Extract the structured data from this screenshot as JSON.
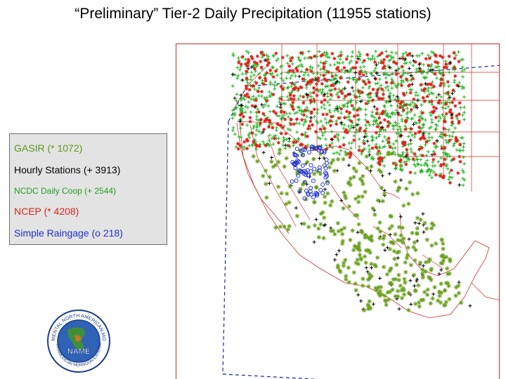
{
  "title": "“Preliminary” Tier-2 Daily Precipitation (11955 stations)",
  "legend": {
    "items": [
      {
        "label": "GASIR (* 1072)",
        "color": "#5a9a1a"
      },
      {
        "label": "Hourly Stations (+ 3913)",
        "color": "#000000"
      },
      {
        "label": "NCDC Daily Coop (+ 2544)",
        "color": "#20a020"
      },
      {
        "label": "NCEP (* 4208)",
        "color": "#d8271a"
      },
      {
        "label": "Simple Raingage (o 218)",
        "color": "#2030d0"
      }
    ]
  },
  "map": {
    "colors": {
      "border": "#c8302a",
      "state_lines": "#c8302a",
      "domain_outline": "#1a2aa0",
      "gasir": "#6aa01e",
      "ncdc": "#22b322",
      "ncep": "#e0201a",
      "hourly": "#000000",
      "raingage": "#2030d0"
    }
  },
  "logo": {
    "text": "NAME",
    "ring_text": "EXPERIMENTAL NORTH AMERICAN MONSOON",
    "ring_text_bottom": "NORTH AMERICAN MONSOON EXPERIMENT"
  }
}
